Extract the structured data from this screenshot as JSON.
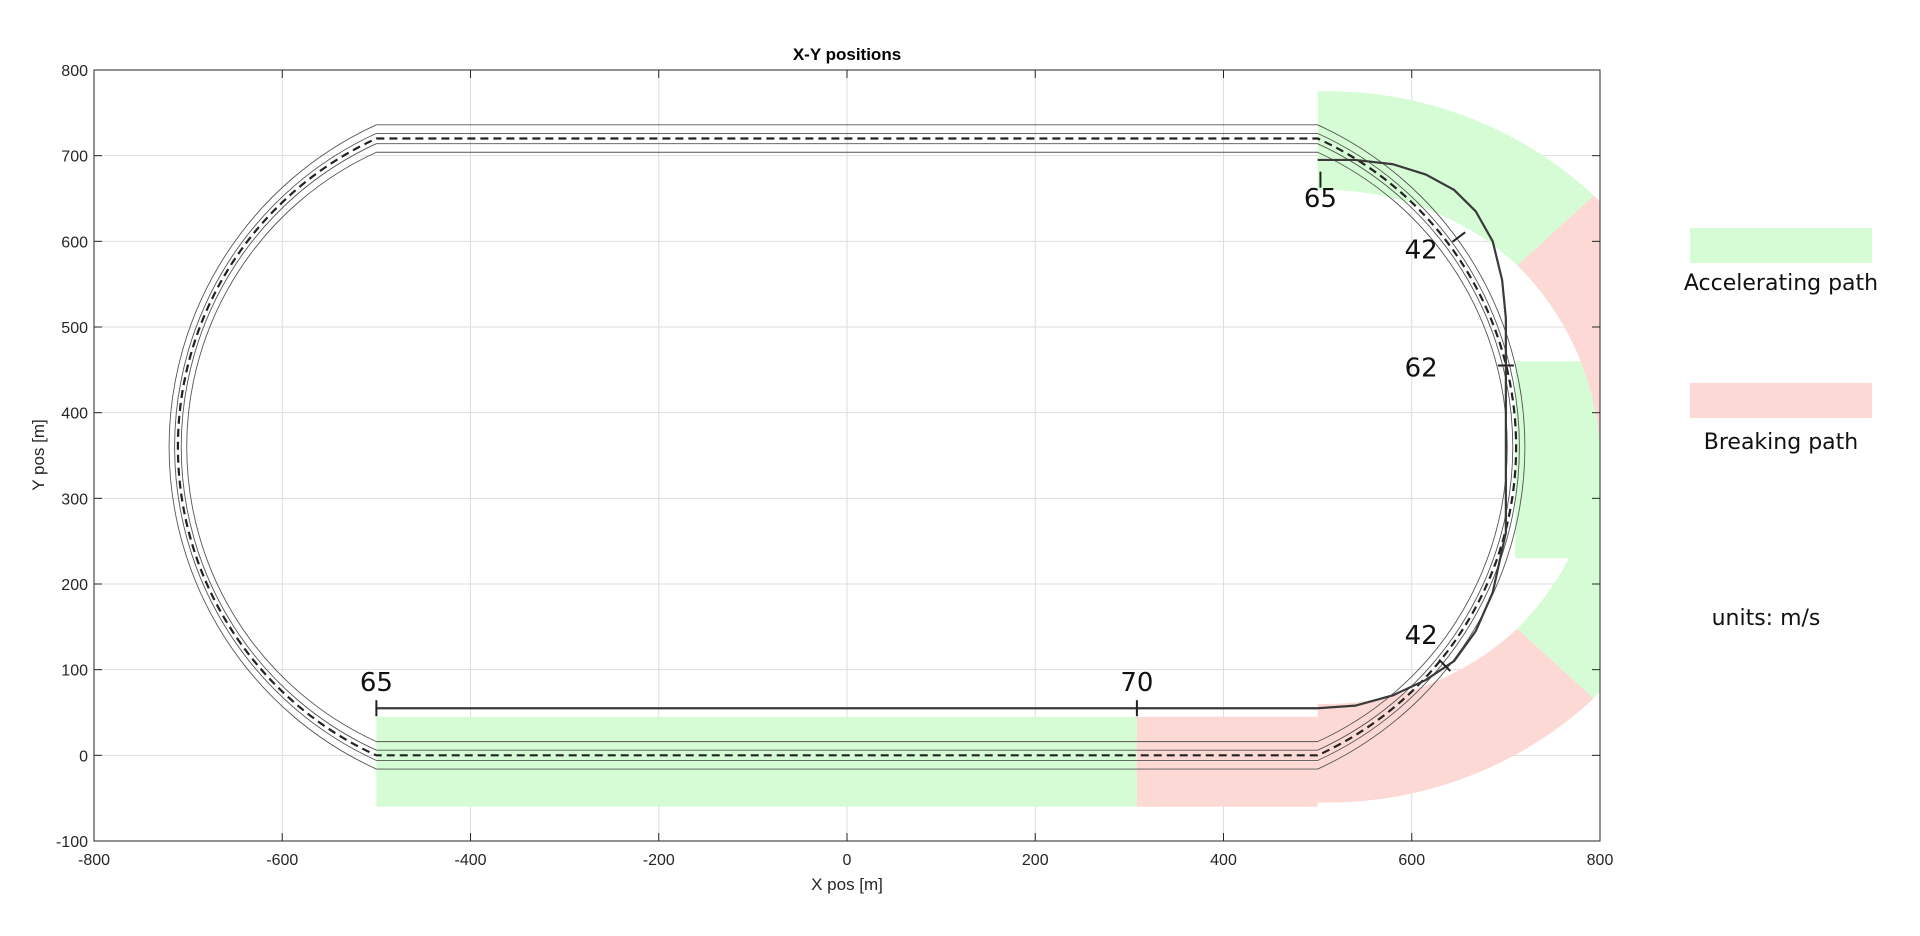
{
  "chart_data": {
    "type": "line",
    "title": "X-Y positions",
    "xlabel": "X pos [m]",
    "ylabel": "Y pos [m]",
    "xlim": [
      -800,
      800
    ],
    "ylim": [
      -100,
      800
    ],
    "xticks": [
      -800,
      -600,
      -400,
      -200,
      0,
      200,
      400,
      600,
      800
    ],
    "yticks": [
      -100,
      0,
      100,
      200,
      300,
      400,
      500,
      600,
      700,
      800
    ],
    "grid": true,
    "track": {
      "straight_y": [
        0,
        720
      ],
      "straight_x": [
        -500,
        500
      ],
      "turn_radius": 360
    },
    "speed_profile": {
      "name": "",
      "x": [
        -500,
        308,
        500,
        540,
        580,
        615,
        645,
        668,
        686,
        696,
        700,
        700,
        700,
        700,
        700,
        696,
        686,
        668,
        645,
        615,
        580,
        540,
        500
      ],
      "y": [
        55,
        55,
        55,
        58,
        70,
        88,
        110,
        145,
        190,
        240,
        260,
        360,
        460,
        490,
        510,
        555,
        600,
        635,
        660,
        678,
        690,
        695,
        695
      ]
    },
    "regions": [
      {
        "kind": "accelerating",
        "shape": "rect",
        "x": [
          -500,
          308
        ],
        "y": [
          -60,
          45
        ]
      },
      {
        "kind": "breaking",
        "shape": "rect",
        "x": [
          308,
          500
        ],
        "y": [
          -60,
          45
        ]
      },
      {
        "kind": "breaking",
        "shape": "sector",
        "angle_deg": [
          -90,
          -45
        ],
        "r": [
          300,
          415
        ]
      },
      {
        "kind": "accelerating",
        "shape": "sector",
        "angle_deg": [
          -45,
          0
        ],
        "r": [
          300,
          415
        ]
      },
      {
        "kind": "accelerating",
        "shape": "rect",
        "x": [
          710,
          800
        ],
        "y": [
          230,
          460
        ]
      },
      {
        "kind": "breaking",
        "shape": "sector",
        "angle_deg": [
          0,
          45
        ],
        "r": [
          300,
          415
        ]
      },
      {
        "kind": "accelerating",
        "shape": "sector",
        "angle_deg": [
          45,
          90
        ],
        "r": [
          300,
          415
        ]
      }
    ],
    "speed_annotations": [
      {
        "label": "65",
        "x": -500,
        "y": 55,
        "tx": -500,
        "ty": 75
      },
      {
        "label": "70",
        "x": 308,
        "y": 55,
        "tx": 308,
        "ty": 75
      },
      {
        "label": "42",
        "x": 635,
        "y": 105,
        "tx": 610,
        "ty": 130
      },
      {
        "label": "62",
        "x": 700,
        "y": 455,
        "tx": 610,
        "ty": 442
      },
      {
        "label": "42",
        "x": 650,
        "y": 605,
        "tx": 610,
        "ty": 580
      },
      {
        "label": "65",
        "x": 503,
        "y": 672,
        "tx": 503,
        "ty": 640
      }
    ],
    "legend": {
      "placement": "right",
      "items": [
        {
          "label": "Accelerating path",
          "color": "#d5fcd5"
        },
        {
          "label": "Breaking path",
          "color": "#fdd9d6"
        }
      ],
      "note": "units: m/s"
    }
  }
}
